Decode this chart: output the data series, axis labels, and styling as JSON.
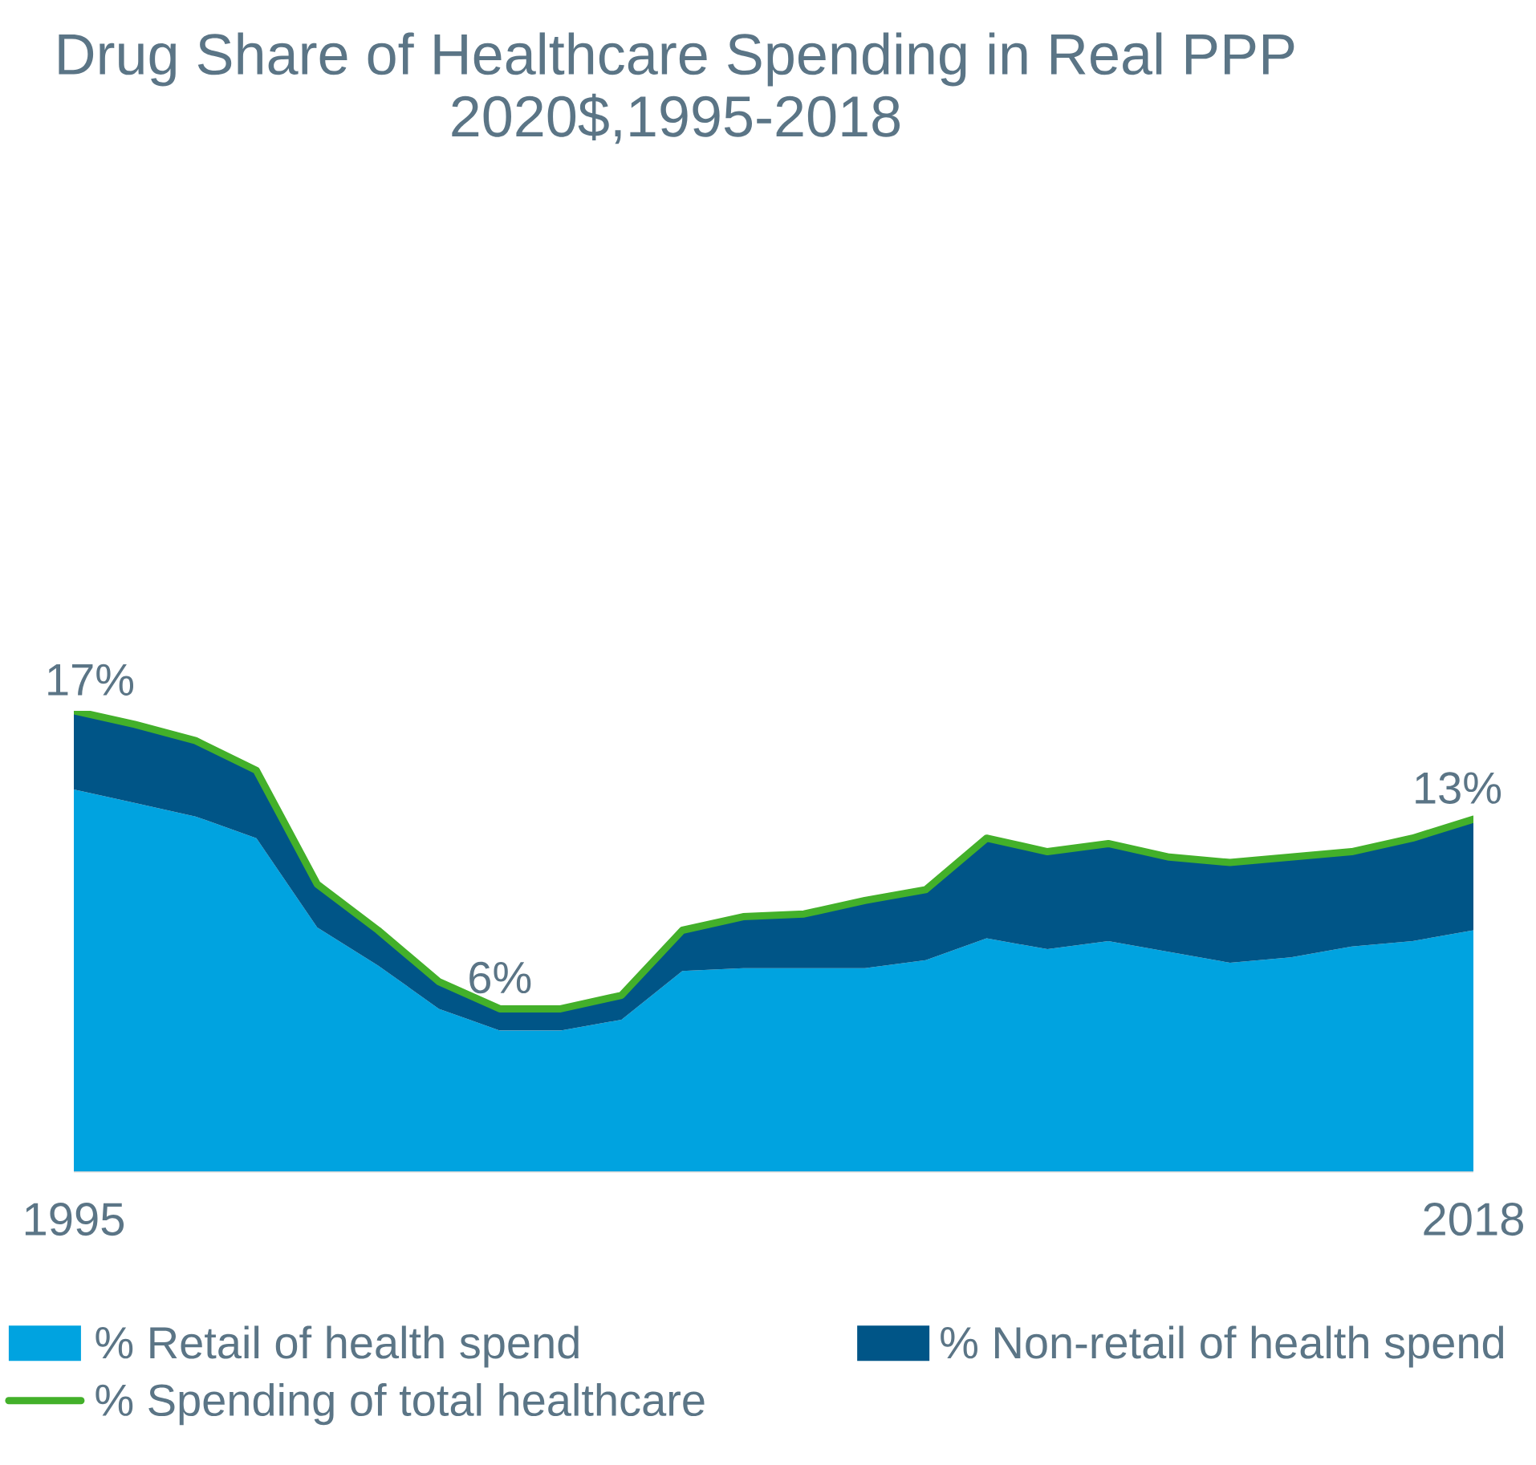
{
  "chart_data": {
    "type": "area",
    "title": "Drug Share of Healthcare Spending in Real PPP",
    "subtitle": "2020$,1995-2018",
    "x": [
      1995,
      1996,
      1997,
      1998,
      1999,
      2000,
      2001,
      2002,
      2003,
      2004,
      2005,
      2006,
      2007,
      2008,
      2009,
      2010,
      2011,
      2012,
      2013,
      2014,
      2015,
      2016,
      2017,
      2018
    ],
    "xlim": [
      1995,
      2018
    ],
    "xticks": [
      1995,
      2018
    ],
    "tick_labels": "x",
    "stacked": true,
    "legend": "bottom",
    "series": [
      {
        "name": "% Retail of health spend",
        "color": "#00a3e0",
        "values": [
          14.1,
          13.6,
          13.1,
          12.3,
          9.0,
          7.6,
          6.0,
          5.2,
          5.2,
          5.6,
          7.4,
          7.5,
          7.5,
          7.5,
          7.8,
          8.6,
          8.2,
          8.5,
          8.1,
          7.7,
          7.9,
          8.3,
          8.5,
          8.9
        ]
      },
      {
        "name": "% Non-retail of health spend",
        "color": "#005587",
        "values": [
          2.9,
          2.9,
          2.8,
          2.5,
          1.6,
          1.3,
          1.0,
          0.8,
          0.8,
          0.9,
          1.5,
          1.9,
          2.0,
          2.5,
          2.6,
          3.7,
          3.6,
          3.6,
          3.5,
          3.7,
          3.7,
          3.5,
          3.8,
          4.1
        ]
      },
      {
        "name": "% Spending of total healthcare",
        "type": "line",
        "color": "#43b02a",
        "values": [
          17,
          16.5,
          15.9,
          14.8,
          10.6,
          8.9,
          7.0,
          6,
          6,
          6.5,
          8.9,
          9.4,
          9.5,
          10.0,
          10.4,
          12.3,
          11.8,
          12.1,
          11.6,
          11.4,
          11.6,
          11.8,
          12.3,
          13
        ],
        "value_labels": [
          "17%",
          null,
          null,
          null,
          null,
          null,
          null,
          "6%",
          null,
          null,
          null,
          null,
          null,
          null,
          null,
          null,
          null,
          null,
          null,
          null,
          null,
          null,
          null,
          "13%"
        ]
      }
    ]
  }
}
